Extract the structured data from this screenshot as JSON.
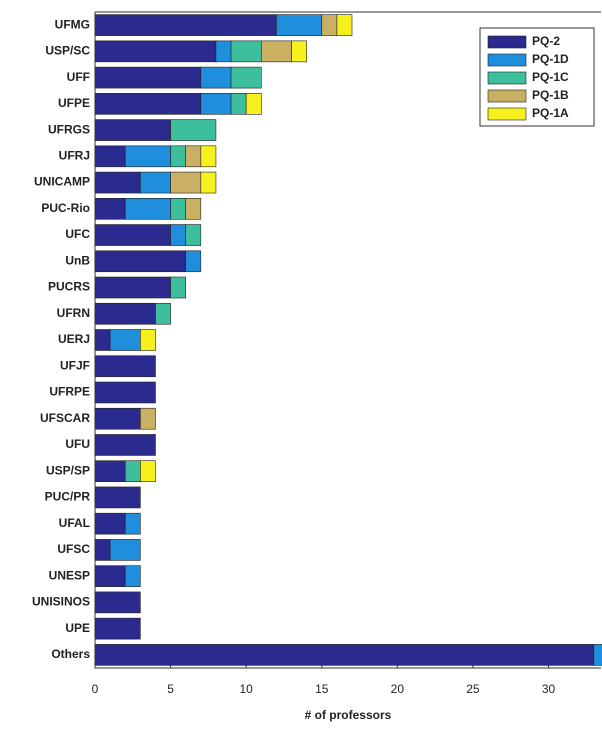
{
  "chart_data": {
    "type": "stacked-barh",
    "xlabel": "# of professors",
    "categories": [
      "UFMG",
      "USP/SC",
      "UFF",
      "UFPE",
      "UFRGS",
      "UFRJ",
      "UNICAMP",
      "PUC-Rio",
      "UFC",
      "UnB",
      "PUCRS",
      "UFRN",
      "UERJ",
      "UFJF",
      "UFRPE",
      "UFSCAR",
      "UFU",
      "USP/SP",
      "PUC/PR",
      "UFAL",
      "UFSC",
      "UNESP",
      "UNISINOS",
      "UPE",
      "Others"
    ],
    "series": [
      {
        "name": "PQ-2",
        "color": "#2b2a8e",
        "values": [
          12,
          8,
          7,
          7,
          5,
          2,
          3,
          2,
          5,
          6,
          5,
          4,
          1,
          4,
          4,
          3,
          4,
          2,
          3,
          2,
          1,
          2,
          3,
          3,
          33
        ]
      },
      {
        "name": "PQ-1D",
        "color": "#1f8edc",
        "values": [
          3,
          1,
          2,
          2,
          0,
          3,
          2,
          3,
          1,
          1,
          0,
          0,
          2,
          0,
          0,
          0,
          0,
          0,
          0,
          1,
          2,
          1,
          0,
          0,
          1
        ]
      },
      {
        "name": "PQ-1C",
        "color": "#3dbf9e",
        "values": [
          0,
          2,
          2,
          1,
          3,
          1,
          0,
          1,
          1,
          0,
          1,
          1,
          0,
          0,
          0,
          0,
          0,
          1,
          0,
          0,
          0,
          0,
          0,
          0,
          0
        ]
      },
      {
        "name": "PQ-1B",
        "color": "#c9b062",
        "values": [
          1,
          2,
          0,
          0,
          0,
          1,
          2,
          1,
          0,
          0,
          0,
          0,
          0,
          0,
          0,
          1,
          0,
          0,
          0,
          0,
          0,
          0,
          0,
          0,
          0
        ]
      },
      {
        "name": "PQ-1A",
        "color": "#f7f01f",
        "values": [
          1,
          1,
          0,
          1,
          0,
          1,
          1,
          0,
          0,
          0,
          0,
          0,
          1,
          0,
          0,
          0,
          0,
          1,
          0,
          0,
          0,
          0,
          0,
          0,
          0
        ]
      }
    ],
    "xlim": [
      0,
      34
    ],
    "xticks": [
      0,
      5,
      10,
      15,
      20,
      25,
      30
    ],
    "legend": "upper-right"
  }
}
